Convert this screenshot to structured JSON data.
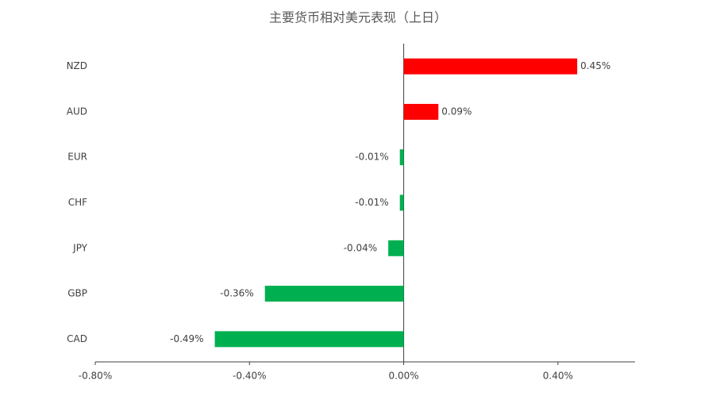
{
  "chart_data": {
    "type": "hbar",
    "title": "主要货币相对美元表现（上日）",
    "categories": [
      "NZD",
      "AUD",
      "EUR",
      "CHF",
      "JPY",
      "GBP",
      "CAD"
    ],
    "values": [
      0.45,
      0.09,
      -0.01,
      -0.01,
      -0.04,
      -0.36,
      -0.49
    ],
    "value_labels": [
      "0.45%",
      "0.09%",
      "-0.01%",
      "-0.01%",
      "-0.04%",
      "-0.36%",
      "-0.49%"
    ],
    "colors": [
      "#ff0000",
      "#ff0000",
      "#00b050",
      "#00b050",
      "#00b050",
      "#00b050",
      "#00b050"
    ],
    "xlim": [
      -0.8,
      0.6
    ],
    "xticks": [
      {
        "value": -0.8,
        "label": "-0.80%"
      },
      {
        "value": -0.4,
        "label": "-0.40%"
      },
      {
        "value": 0,
        "label": "0.00%"
      },
      {
        "value": 0.4,
        "label": "0.40%"
      }
    ]
  }
}
